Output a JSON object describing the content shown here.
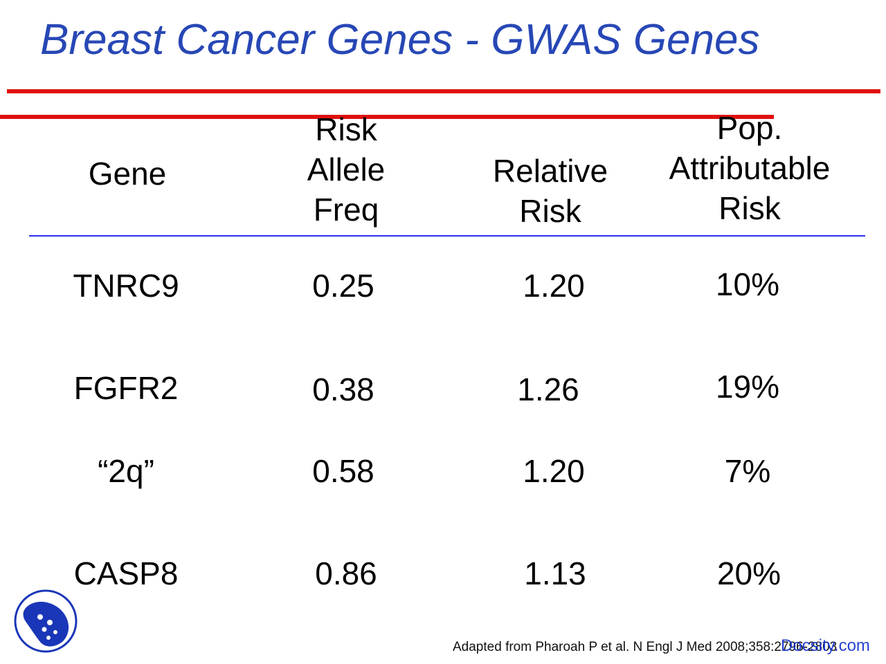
{
  "slide": {
    "title": "Breast Cancer Genes - GWAS Genes"
  },
  "table": {
    "headers": {
      "gene": [
        "Gene"
      ],
      "risk_allele_freq": [
        "Risk",
        "Allele",
        "Freq"
      ],
      "relative_risk": [
        "Relative",
        "Risk"
      ],
      "pop_attributable_risk": [
        "Pop.",
        "Attributable",
        "Risk"
      ]
    },
    "rows": [
      {
        "gene": "TNRC9",
        "freq": "0.25",
        "rr": "1.20",
        "par": "10%"
      },
      {
        "gene": "FGFR2",
        "freq": "0.38",
        "rr": "1.26",
        "par": "19%"
      },
      {
        "gene": "“2q”",
        "freq": "0.58",
        "rr": "1.20",
        "par": "7%"
      },
      {
        "gene": "CASP8",
        "freq": "0.86",
        "rr": "1.13",
        "par": "20%"
      }
    ]
  },
  "footer": {
    "source": "Adapted from Pharoah P et al. N Engl J Med 2008;358:2796-2803",
    "watermark": "Docsity.com",
    "logo_icon": "shield-logo-icon"
  },
  "colors": {
    "title": "#2747b5",
    "rule": "#e01010",
    "header_rule": "#2a2ff0",
    "logo": "#1a36b8"
  }
}
